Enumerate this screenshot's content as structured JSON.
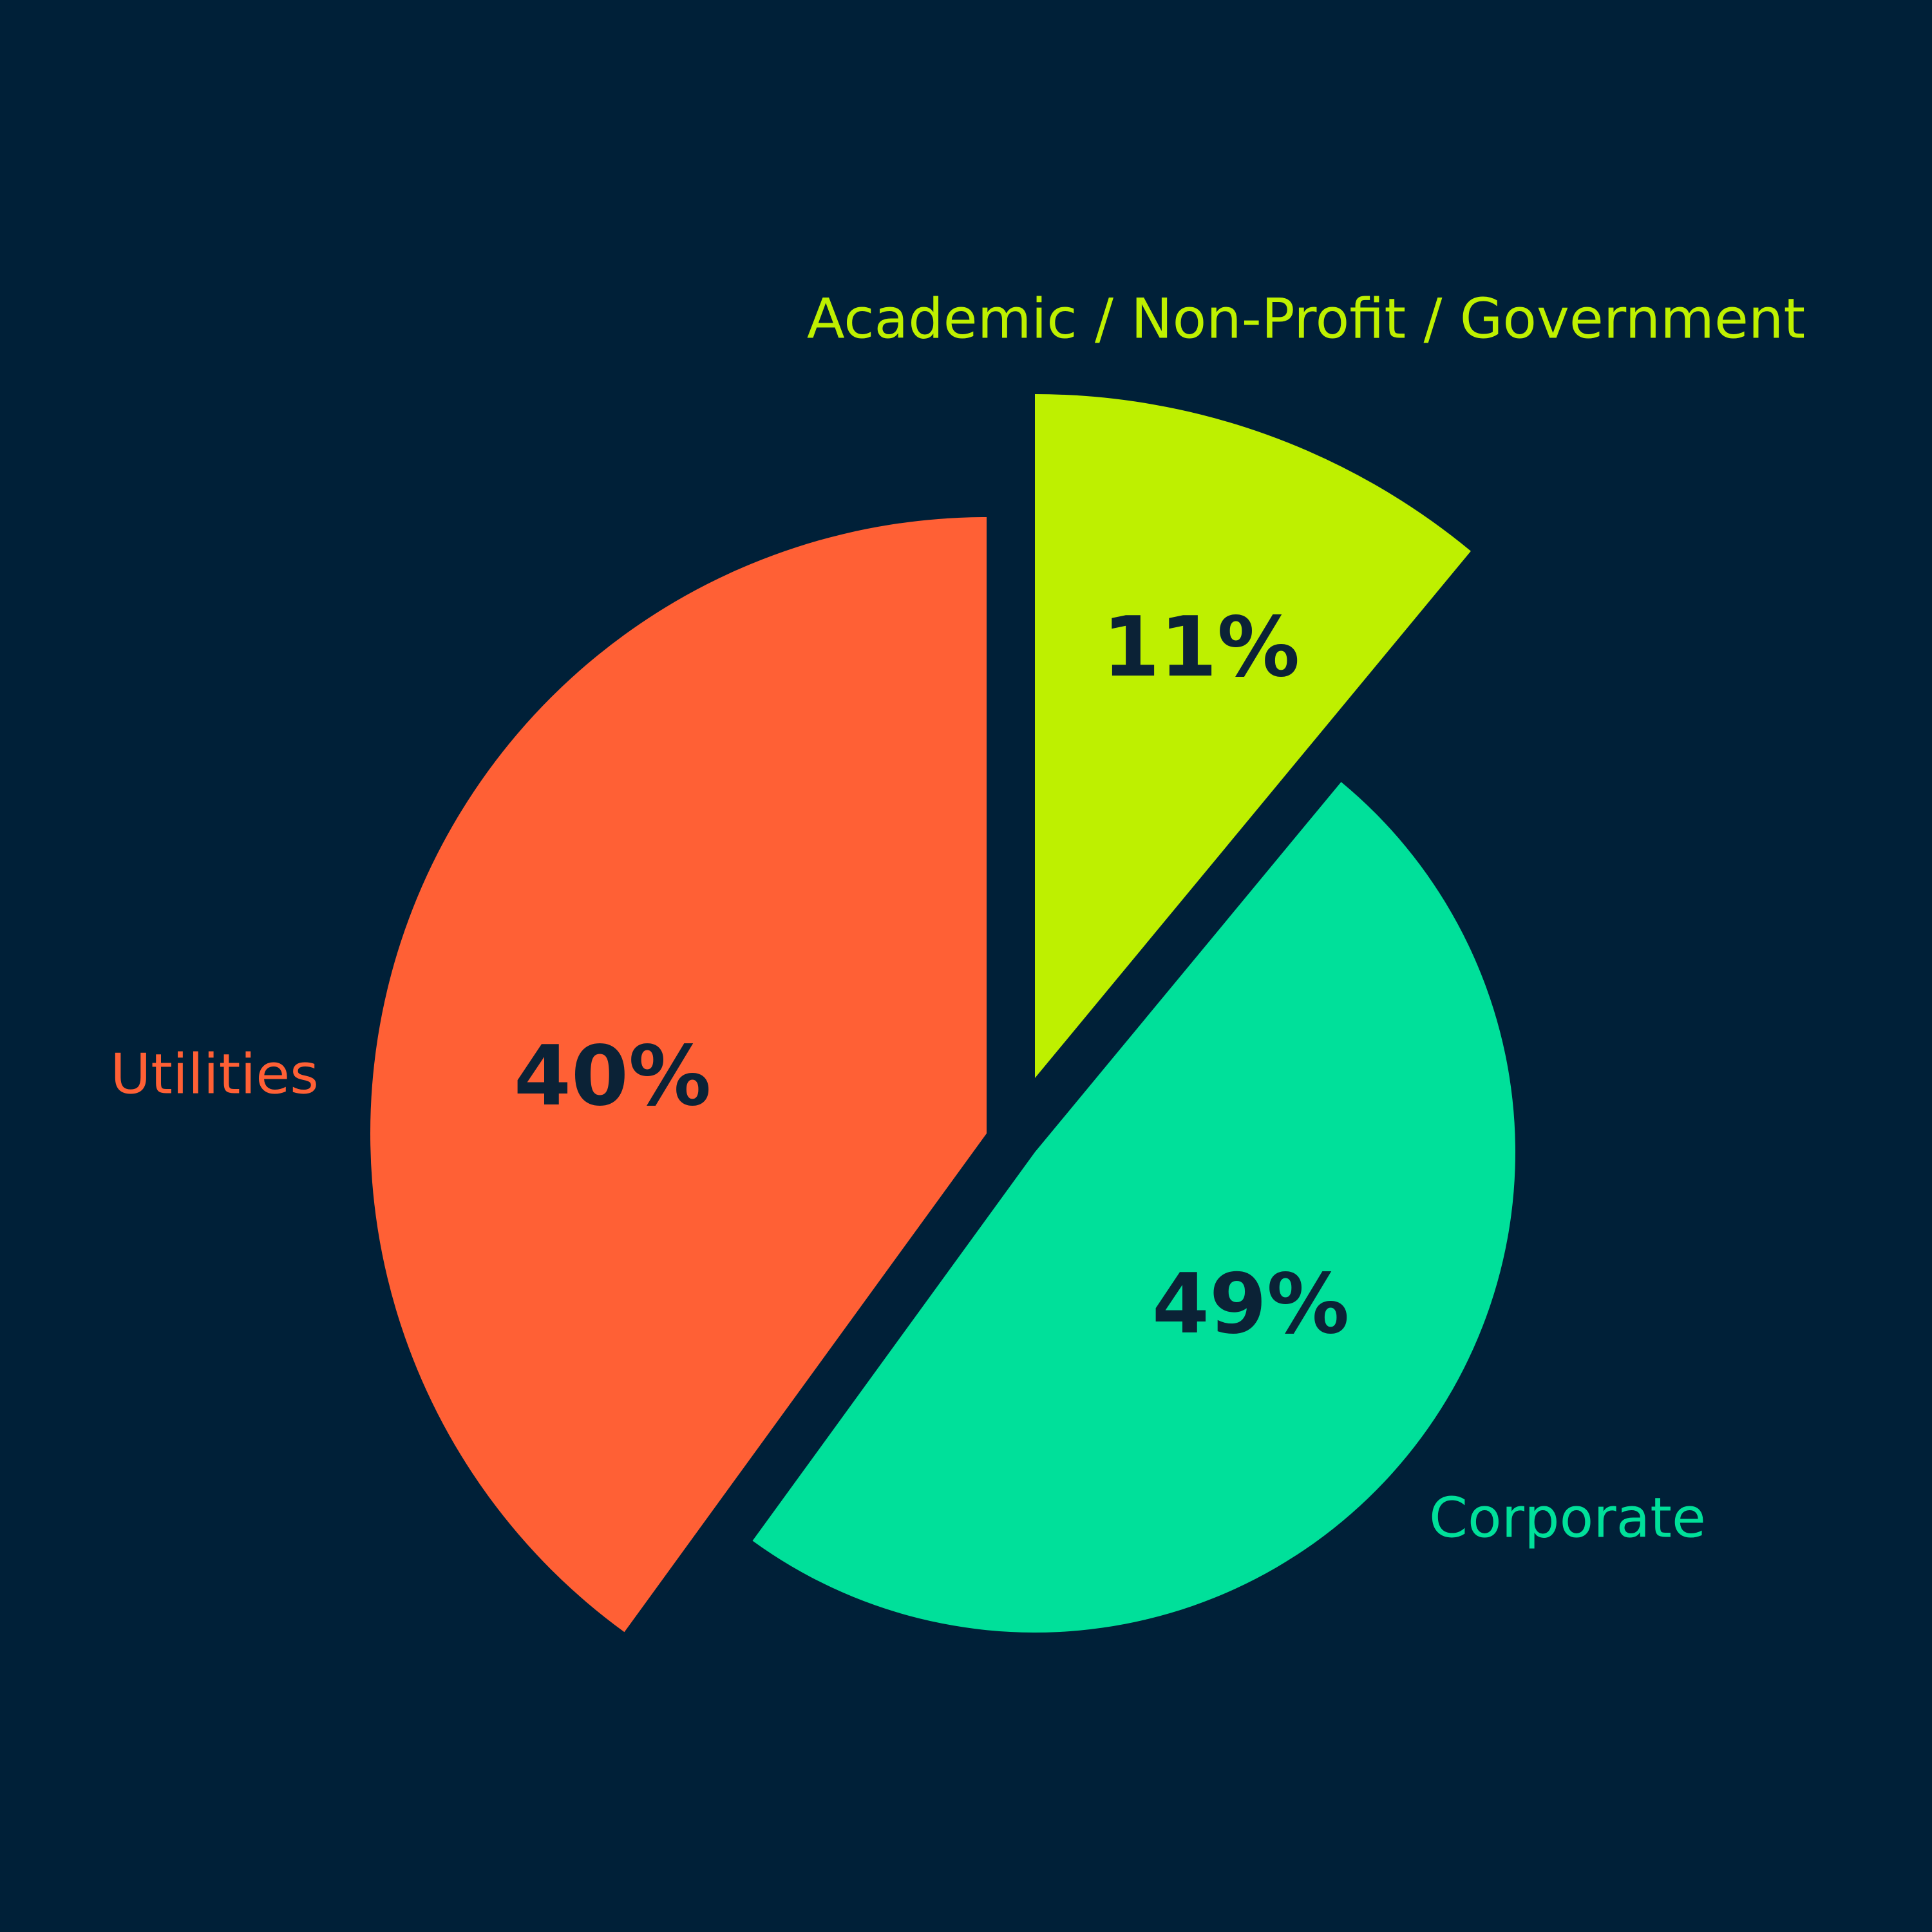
{
  "chart_data": {
    "type": "pie",
    "categories": [
      "Academic / Non-Profit / Government",
      "Corporate",
      "Utilities"
    ],
    "values": [
      11,
      49,
      40
    ],
    "value_labels": [
      "11%",
      "49%",
      "40%"
    ],
    "colors": [
      "#bef000",
      "#00e09a",
      "#ff6035"
    ]
  }
}
